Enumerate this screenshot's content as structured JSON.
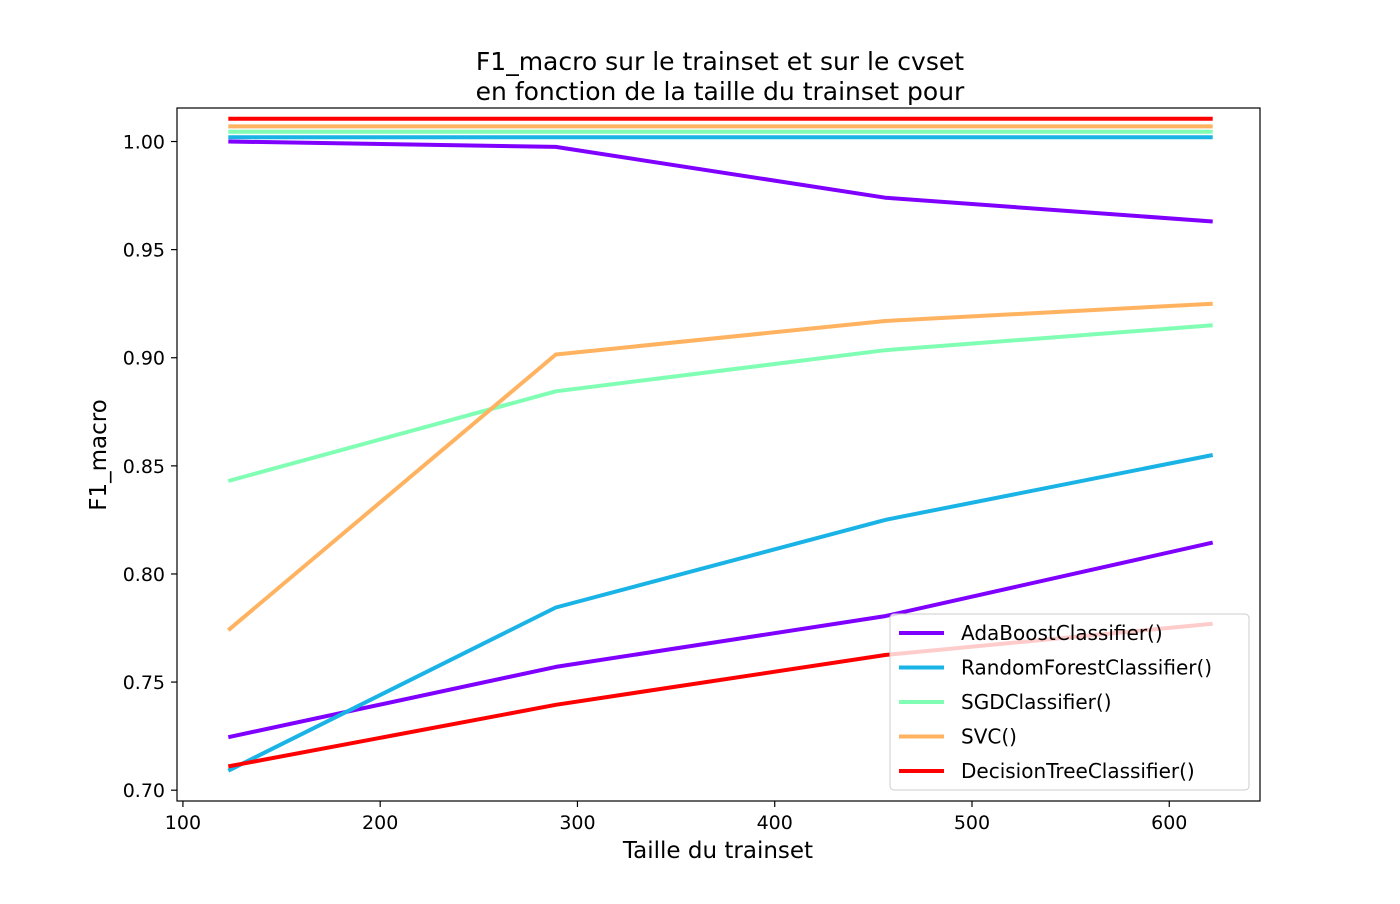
{
  "chart_data": {
    "type": "line",
    "title_lines": [
      "F1_macro sur le trainset et sur le cvset",
      "en fonction de la taille du trainset pour"
    ],
    "xlabel": "Taille du trainset",
    "ylabel": "F1_macro",
    "xlim": [
      97,
      646
    ],
    "ylim": [
      0.695,
      1.0155
    ],
    "x_ticks": [
      100,
      200,
      300,
      400,
      500,
      600
    ],
    "y_ticks": [
      0.7,
      0.75,
      0.8,
      0.85,
      0.9,
      0.95,
      1.0
    ],
    "x_tick_labels": [
      "100",
      "200",
      "300",
      "400",
      "500",
      "600"
    ],
    "y_tick_labels": [
      "0.70",
      "0.75",
      "0.80",
      "0.85",
      "0.90",
      "0.95",
      "1.00"
    ],
    "grid": false,
    "legend_position": "lower-right",
    "x": [
      123,
      289,
      456,
      622
    ],
    "series": [
      {
        "name": "AdaBoostClassifier()",
        "color": "#8000ff",
        "train": [
          1.0,
          0.9975,
          0.974,
          0.963
        ],
        "cv": [
          0.7245,
          0.757,
          0.7805,
          0.8145
        ]
      },
      {
        "name": "RandomForestClassifier()",
        "color": "#1ab3e6",
        "train": [
          1.002,
          1.002,
          1.002,
          1.002
        ],
        "cv": [
          0.709,
          0.7845,
          0.825,
          0.855
        ]
      },
      {
        "name": "SGDClassifier()",
        "color": "#80ffb4",
        "train": [
          1.0045,
          1.0045,
          1.0045,
          1.0045
        ],
        "cv": [
          0.843,
          0.8845,
          0.9035,
          0.915
        ]
      },
      {
        "name": "SVC()",
        "color": "#ffb360",
        "train": [
          1.007,
          1.007,
          1.007,
          1.007
        ],
        "cv": [
          0.774,
          0.9015,
          0.917,
          0.925
        ]
      },
      {
        "name": "DecisionTreeClassifier()",
        "color": "#ff0000",
        "train": [
          1.0105,
          1.0105,
          1.0105,
          1.0105
        ],
        "cv": [
          0.711,
          0.7395,
          0.7625,
          0.777
        ]
      }
    ]
  }
}
